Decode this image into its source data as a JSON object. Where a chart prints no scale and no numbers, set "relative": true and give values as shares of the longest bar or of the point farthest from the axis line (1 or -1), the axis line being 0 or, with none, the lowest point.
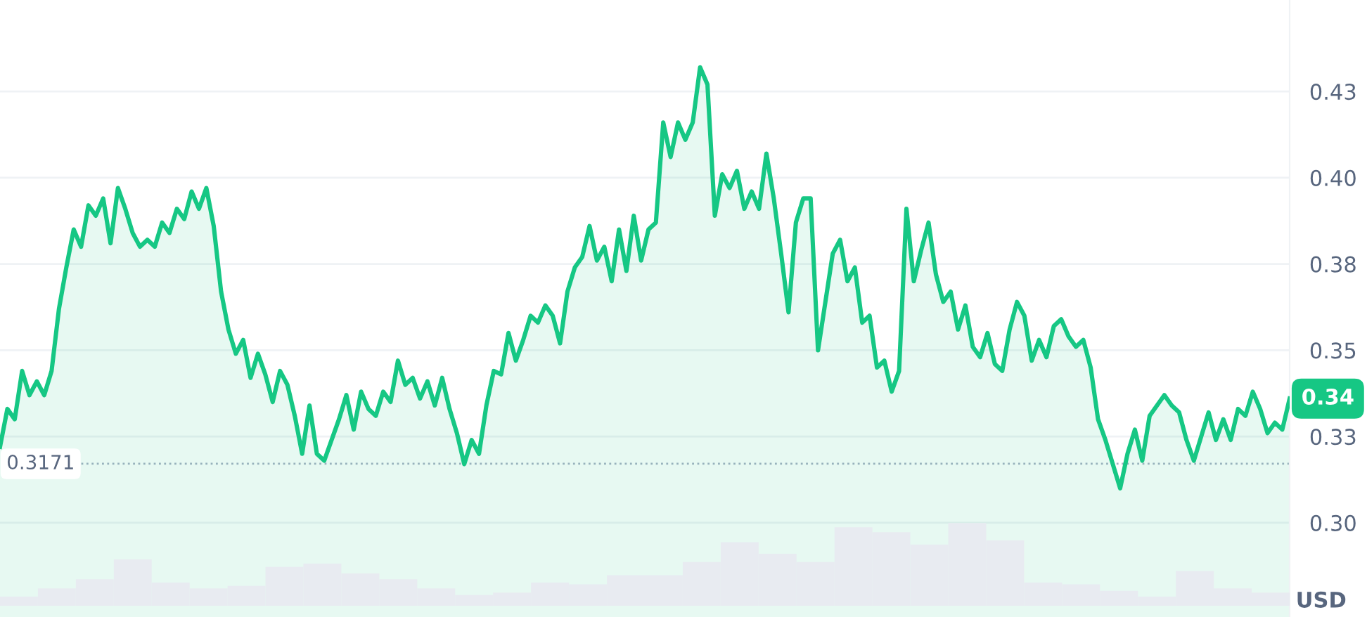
{
  "chart_data": [
    {
      "type": "area",
      "ylabel": "USD",
      "grid": "y",
      "tick_labels": "y",
      "marker": "none",
      "line_style": "solid",
      "ylim": [
        0.2727,
        0.4515
      ],
      "yticks": [
        {
          "value": 0.3,
          "label": "0.30"
        },
        {
          "value": 0.325,
          "label": "0.33"
        },
        {
          "value": 0.35,
          "label": "0.35"
        },
        {
          "value": 0.375,
          "label": "0.38"
        },
        {
          "value": 0.4,
          "label": "0.40"
        },
        {
          "value": 0.425,
          "label": "0.43"
        }
      ],
      "ref_lines": [
        {
          "axis": "y",
          "value": 0.3171,
          "label": "0.3171",
          "line_style": "dotted",
          "color": "#a6b0c3"
        }
      ],
      "annotations": [
        "0.34"
      ],
      "categories": [
        null,
        null,
        null,
        null,
        null,
        null,
        null,
        null,
        null,
        null,
        null,
        null,
        null,
        null,
        null,
        null,
        null,
        null,
        null,
        null,
        null,
        null,
        null,
        null,
        null,
        null,
        null,
        null,
        null,
        null,
        null,
        null,
        null,
        null,
        null,
        null,
        null,
        null,
        null,
        null,
        null,
        null,
        null,
        null,
        null,
        null,
        null,
        null,
        null,
        null,
        null,
        null,
        null,
        null,
        null,
        null,
        null,
        null,
        null,
        null,
        null,
        null,
        null,
        null,
        null,
        null,
        null,
        null,
        null,
        null,
        null,
        null,
        null,
        null,
        null,
        null,
        null,
        null,
        null,
        null,
        null,
        null,
        null,
        null,
        null,
        null,
        null,
        null,
        null,
        null,
        null,
        null,
        null,
        null,
        null,
        null,
        null,
        null,
        null,
        null,
        null,
        null,
        null,
        null,
        null,
        null,
        null,
        null,
        null,
        null,
        null,
        null,
        null,
        null,
        null,
        null,
        null,
        null,
        null,
        null,
        null,
        null,
        null,
        null,
        null,
        null,
        null,
        null,
        null,
        null,
        null,
        null,
        null,
        null,
        null,
        null,
        null,
        null,
        null,
        null,
        null,
        null,
        null,
        null,
        null,
        null,
        null,
        null,
        null,
        null,
        null,
        null,
        null,
        null,
        null,
        null,
        null,
        null,
        null,
        null,
        null,
        null,
        null,
        null,
        null,
        null,
        null,
        null,
        null,
        null,
        null,
        null,
        null,
        null,
        null,
        null
      ],
      "series": [
        {
          "color": "#16c784",
          "values": [
            0.322,
            0.333,
            0.33,
            0.344,
            0.337,
            0.341,
            0.337,
            0.344,
            0.362,
            0.374,
            0.385,
            0.38,
            0.392,
            0.389,
            0.394,
            0.381,
            0.397,
            0.391,
            0.384,
            0.38,
            0.382,
            0.38,
            0.387,
            0.384,
            0.391,
            0.388,
            0.396,
            0.391,
            0.397,
            0.386,
            0.367,
            0.356,
            0.349,
            0.353,
            0.342,
            0.349,
            0.343,
            0.335,
            0.344,
            0.34,
            0.331,
            0.32,
            0.334,
            0.32,
            0.318,
            0.324,
            0.33,
            0.337,
            0.327,
            0.338,
            0.333,
            0.331,
            0.338,
            0.335,
            0.347,
            0.34,
            0.342,
            0.336,
            0.341,
            0.334,
            0.342,
            0.333,
            0.326,
            0.317,
            0.324,
            0.32,
            0.334,
            0.344,
            0.343,
            0.355,
            0.347,
            0.353,
            0.36,
            0.358,
            0.363,
            0.36,
            0.352,
            0.367,
            0.374,
            0.377,
            0.386,
            0.376,
            0.38,
            0.37,
            0.385,
            0.373,
            0.389,
            0.376,
            0.385,
            0.387,
            0.416,
            0.406,
            0.416,
            0.411,
            0.416,
            0.432,
            0.427,
            0.389,
            0.401,
            0.397,
            0.402,
            0.391,
            0.396,
            0.391,
            0.407,
            0.394,
            0.378,
            0.361,
            0.387,
            0.394,
            0.394,
            0.35,
            0.364,
            0.378,
            0.382,
            0.37,
            0.374,
            0.358,
            0.36,
            0.345,
            0.347,
            0.338,
            0.344,
            0.391,
            0.37,
            0.379,
            0.387,
            0.372,
            0.364,
            0.367,
            0.356,
            0.363,
            0.351,
            0.348,
            0.355,
            0.346,
            0.344,
            0.356,
            0.364,
            0.36,
            0.347,
            0.353,
            0.348,
            0.357,
            0.359,
            0.354,
            0.351,
            0.353,
            0.345,
            0.33,
            0.324,
            0.317,
            0.31,
            0.32,
            0.327,
            0.318,
            0.331,
            0.334,
            0.337,
            0.334,
            0.332,
            0.324,
            0.318,
            0.325,
            0.332,
            0.324,
            0.33,
            0.324,
            0.333,
            0.331,
            0.338,
            0.333,
            0.326,
            0.329,
            0.327,
            0.336
          ]
        }
      ]
    },
    {
      "type": "bar",
      "relative": true,
      "tick_labels": false,
      "grid": false,
      "categories": [
        null,
        null,
        null,
        null,
        null,
        null,
        null,
        null,
        null,
        null,
        null,
        null,
        null,
        null,
        null,
        null,
        null,
        null,
        null,
        null,
        null,
        null,
        null,
        null,
        null,
        null,
        null,
        null,
        null,
        null,
        null,
        null,
        null,
        null
      ],
      "series": [
        {
          "color": "#e8ebf1",
          "values": [
            0.11,
            0.21,
            0.32,
            0.56,
            0.28,
            0.21,
            0.24,
            0.47,
            0.51,
            0.39,
            0.32,
            0.21,
            0.13,
            0.16,
            0.28,
            0.26,
            0.37,
            0.37,
            0.53,
            0.77,
            0.63,
            0.53,
            0.95,
            0.89,
            0.74,
            1,
            0.79,
            0.28,
            0.26,
            0.18,
            0.11,
            0.42,
            0.21,
            0.16
          ]
        }
      ]
    }
  ]
}
